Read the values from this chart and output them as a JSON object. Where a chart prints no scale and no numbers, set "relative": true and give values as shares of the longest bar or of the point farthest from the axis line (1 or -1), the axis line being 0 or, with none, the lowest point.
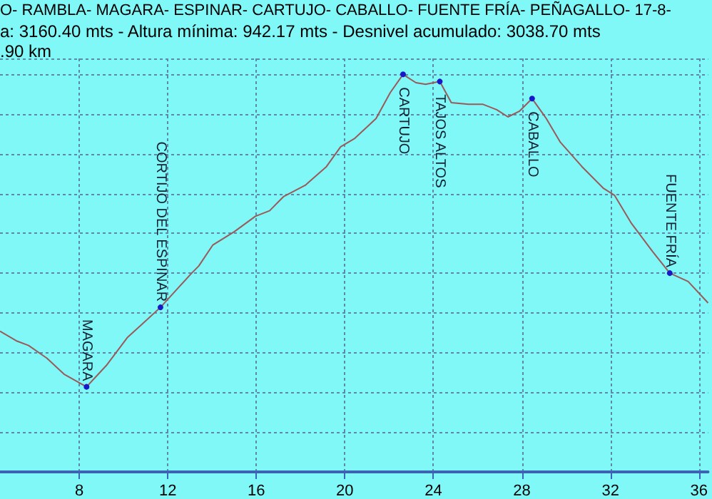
{
  "chart_data": {
    "type": "line",
    "relative": true,
    "title": "O- RAMBLA- MAGARA- ESPINAR- CARTUJO- CABALLO- FUENTE FRÍA- PEÑAGALLO- 17-8-",
    "subtitle": "a: 3160.40 mts - Altura mínima: 942.17 mts - Desnivel acumulado: 3038.70 mts",
    "annotations": [
      ".90 km",
      {
        "text": "MAGARA",
        "x": 8.33,
        "y": 0.214
      },
      {
        "text": "CORTIJO DEL ESPINAR",
        "x": 11.67,
        "y": 0.414
      },
      {
        "text": "CARTUJO",
        "x": 22.63,
        "y": 1
      },
      {
        "text": "TAJOS ALTOS",
        "x": 24.29,
        "y": 0.982
      },
      {
        "text": "CABALLO",
        "x": 28.46,
        "y": 0.939
      },
      {
        "text": "FUENTE FRÍA",
        "x": 34.68,
        "y": 0.5
      }
    ],
    "x": [
      4.42,
      5.19,
      5.71,
      6.54,
      7.31,
      8.33,
      9.23,
      10.19,
      10.83,
      11.67,
      12.44,
      13.08,
      13.4,
      14.04,
      15.0,
      15.96,
      16.6,
      17.24,
      18.21,
      19.17,
      19.81,
      20.45,
      21.41,
      22.05,
      22.63,
      23.21,
      23.65,
      24.29,
      24.81,
      25.58,
      26.22,
      26.86,
      27.37,
      27.88,
      28.46,
      29.1,
      29.74,
      30.71,
      31.67,
      32.18,
      32.95,
      33.91,
      34.68,
      35.51,
      36.41
    ],
    "series": [
      {
        "color": "#9a5a5a",
        "values": [
          0.354,
          0.329,
          0.318,
          0.286,
          0.246,
          0.214,
          0.268,
          0.339,
          0.371,
          0.414,
          0.461,
          0.5,
          0.518,
          0.571,
          0.604,
          0.643,
          0.657,
          0.693,
          0.721,
          0.768,
          0.818,
          0.839,
          0.889,
          0.954,
          1,
          0.979,
          0.975,
          0.982,
          0.929,
          0.925,
          0.925,
          0.911,
          0.893,
          0.907,
          0.939,
          0.889,
          0.829,
          0.768,
          0.714,
          0.696,
          0.625,
          0.554,
          0.5,
          0.479,
          0.425
        ]
      }
    ],
    "xlim": [
      4.42,
      36.41
    ],
    "xticks": [
      8,
      12,
      16,
      20,
      24,
      28,
      32,
      36
    ],
    "grid": true
  }
}
